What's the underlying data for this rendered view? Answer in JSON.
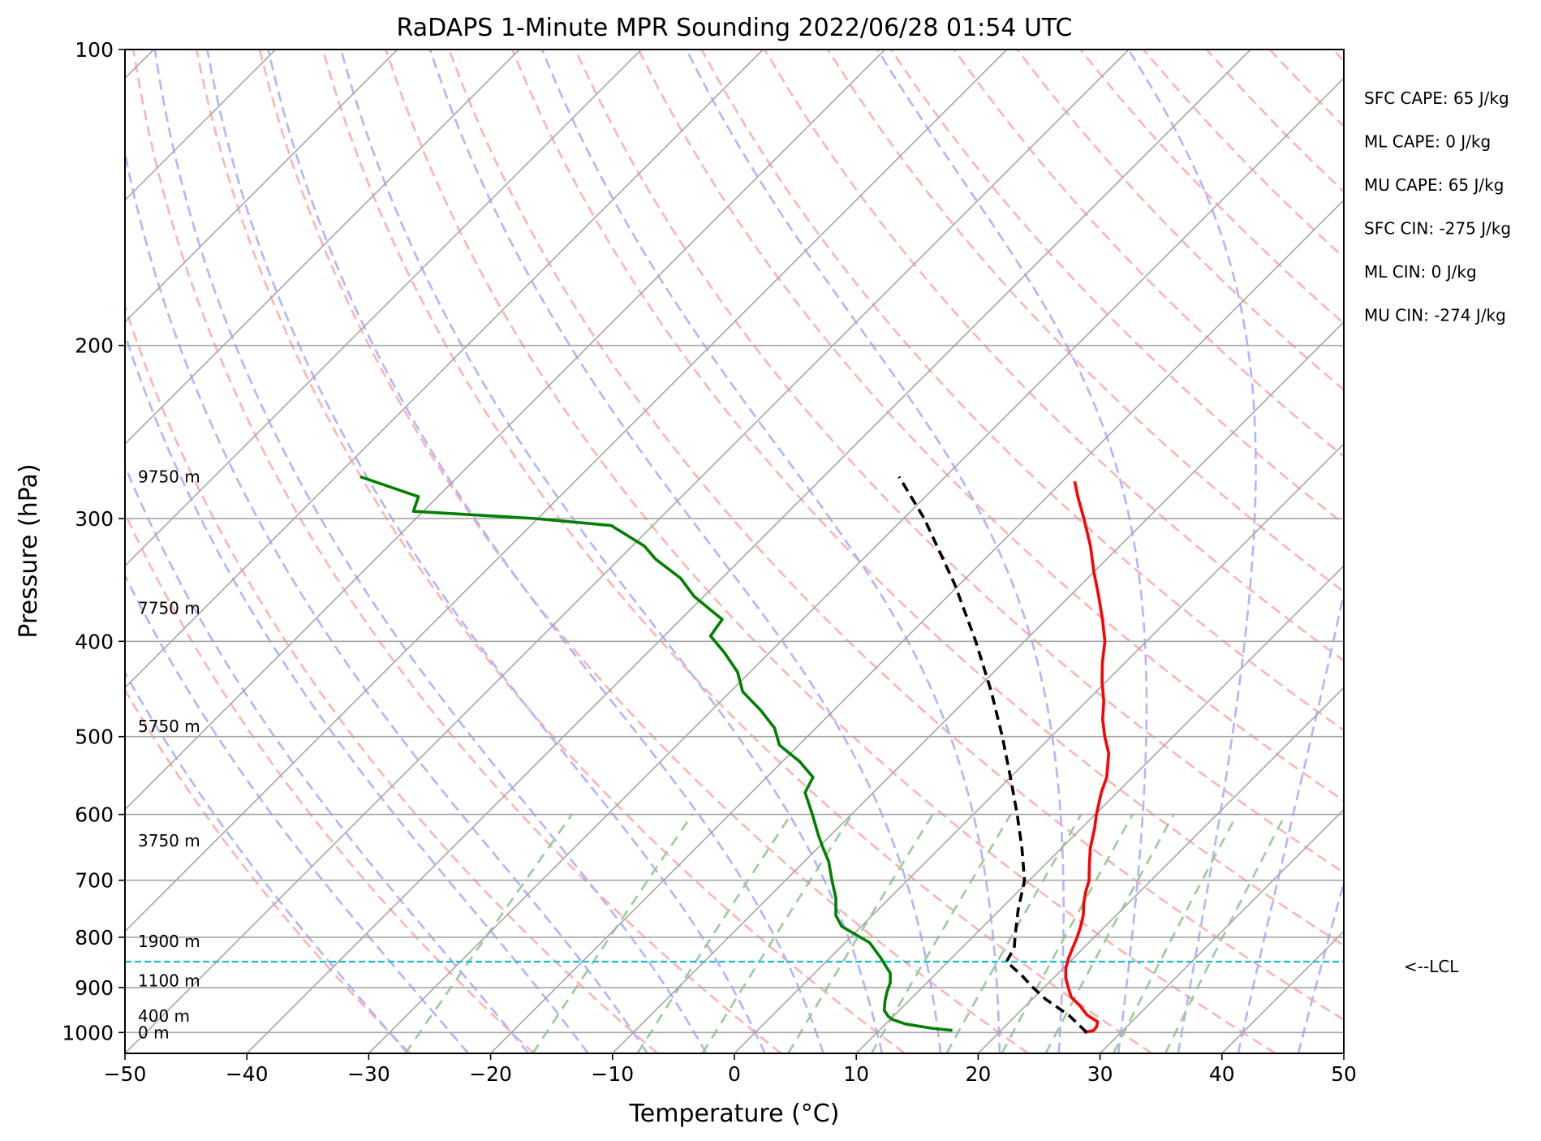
{
  "chart_data": {
    "type": "skew-t",
    "title": "RaDAPS 1-Minute MPR Sounding 2022/06/28 01:54 UTC",
    "xlabel": "Temperature (°C)",
    "ylabel": "Pressure (hPa)",
    "xlim": [
      -50,
      50
    ],
    "ylim": [
      1050,
      100
    ],
    "y_scale": "log",
    "skew": "45 degrees",
    "grid": true,
    "x_ticks": [
      "−50",
      "−40",
      "−30",
      "−20",
      "−10",
      "0",
      "10",
      "20",
      "30",
      "40",
      "50"
    ],
    "x_tick_values": [
      -50,
      -40,
      -30,
      -20,
      -10,
      0,
      10,
      20,
      30,
      40,
      50
    ],
    "y_ticks": [
      "100",
      "200",
      "300",
      "400",
      "500",
      "600",
      "700",
      "800",
      "900",
      "1000"
    ],
    "y_tick_values": [
      100,
      200,
      300,
      400,
      500,
      600,
      700,
      800,
      900,
      1000
    ],
    "colors": {
      "temperature": "#ff0000",
      "dewpoint": "#008000",
      "parcel": "#000000",
      "lcl": "#17becf",
      "dry_adiabats": "#ffb3b3",
      "moist_adiabats": "#b3b3ff",
      "mixing_ratio": "#99cc99",
      "isotherms": "#a6a6a6"
    },
    "series": [
      {
        "key": "temperature",
        "values": [
          [
            1000,
            27.0
          ],
          [
            995,
            27.6
          ],
          [
            985,
            27.5
          ],
          [
            975,
            27.2
          ],
          [
            960,
            25.8
          ],
          [
            940,
            24.5
          ],
          [
            920,
            23.0
          ],
          [
            900,
            22.0
          ],
          [
            880,
            21.0
          ],
          [
            860,
            20.2
          ],
          [
            840,
            19.6
          ],
          [
            820,
            19.1
          ],
          [
            800,
            18.6
          ],
          [
            780,
            18.0
          ],
          [
            760,
            17.3
          ],
          [
            740,
            16.4
          ],
          [
            720,
            15.6
          ],
          [
            700,
            14.9
          ],
          [
            680,
            13.9
          ],
          [
            650,
            12.4
          ],
          [
            620,
            11.1
          ],
          [
            600,
            10.1
          ],
          [
            570,
            8.7
          ],
          [
            550,
            7.9
          ],
          [
            520,
            6.1
          ],
          [
            500,
            4.4
          ],
          [
            480,
            2.8
          ],
          [
            460,
            1.4
          ],
          [
            440,
            -0.3
          ],
          [
            420,
            -1.9
          ],
          [
            400,
            -3.4
          ],
          [
            380,
            -5.4
          ],
          [
            360,
            -7.6
          ],
          [
            340,
            -10.0
          ],
          [
            320,
            -12.4
          ],
          [
            300,
            -15.2
          ],
          [
            285,
            -17.5
          ],
          [
            275,
            -19.0
          ]
        ]
      },
      {
        "key": "dewpoint",
        "values": [
          [
            995,
            16.0
          ],
          [
            990,
            14.1
          ],
          [
            980,
            11.6
          ],
          [
            970,
            10.2
          ],
          [
            963,
            9.6
          ],
          [
            950,
            8.8
          ],
          [
            930,
            8.1
          ],
          [
            910,
            7.5
          ],
          [
            890,
            7.0
          ],
          [
            870,
            6.2
          ],
          [
            855,
            5.2
          ],
          [
            840,
            4.2
          ],
          [
            810,
            2.0
          ],
          [
            780,
            -1.6
          ],
          [
            760,
            -3.0
          ],
          [
            730,
            -4.4
          ],
          [
            700,
            -6.2
          ],
          [
            670,
            -8.0
          ],
          [
            650,
            -9.5
          ],
          [
            630,
            -11.0
          ],
          [
            600,
            -13.2
          ],
          [
            570,
            -15.6
          ],
          [
            550,
            -16.2
          ],
          [
            530,
            -18.6
          ],
          [
            510,
            -21.6
          ],
          [
            490,
            -23.4
          ],
          [
            470,
            -26.0
          ],
          [
            450,
            -29.0
          ],
          [
            430,
            -31.0
          ],
          [
            410,
            -33.8
          ],
          [
            395,
            -36.2
          ],
          [
            380,
            -36.6
          ],
          [
            360,
            -40.8
          ],
          [
            345,
            -43.4
          ],
          [
            330,
            -47.0
          ],
          [
            320,
            -49.0
          ],
          [
            305,
            -53.4
          ],
          [
            300,
            -60.2
          ],
          [
            295,
            -70.8
          ],
          [
            285,
            -71.6
          ],
          [
            272,
            -78.0
          ]
        ]
      },
      {
        "key": "parcel",
        "values": [
          [
            1000,
            27.2
          ],
          [
            960,
            24.3
          ],
          [
            925,
            21.1
          ],
          [
            900,
            19.1
          ],
          [
            875,
            17.2
          ],
          [
            847,
            14.8
          ],
          [
            820,
            14.3
          ],
          [
            800,
            13.5
          ],
          [
            750,
            11.5
          ],
          [
            700,
            9.6
          ],
          [
            650,
            6.8
          ],
          [
            600,
            3.6
          ],
          [
            550,
            0.0
          ],
          [
            500,
            -4.0
          ],
          [
            450,
            -8.6
          ],
          [
            400,
            -14.0
          ],
          [
            350,
            -20.4
          ],
          [
            300,
            -28.3
          ],
          [
            272,
            -33.8
          ]
        ]
      }
    ],
    "lcl_hpa": 847,
    "lcl_label": "<--LCL",
    "heights": [
      {
        "label": "9750 m",
        "p": 272
      },
      {
        "label": "7750 m",
        "p": 370
      },
      {
        "label": "5750 m",
        "p": 488
      },
      {
        "label": "3750 m",
        "p": 638
      },
      {
        "label": "1900 m",
        "p": 808
      },
      {
        "label": "1100 m",
        "p": 886
      },
      {
        "label": "400 m",
        "p": 962
      },
      {
        "label": "0 m",
        "p": 1000
      }
    ],
    "stats": [
      "SFC CAPE: 65 J/kg",
      "ML CAPE: 0 J/kg",
      "MU CAPE: 65 J/kg",
      "SFC CIN: -275 J/kg",
      "ML CIN: 0 J/kg",
      "MU CIN: -274 J/kg"
    ]
  }
}
